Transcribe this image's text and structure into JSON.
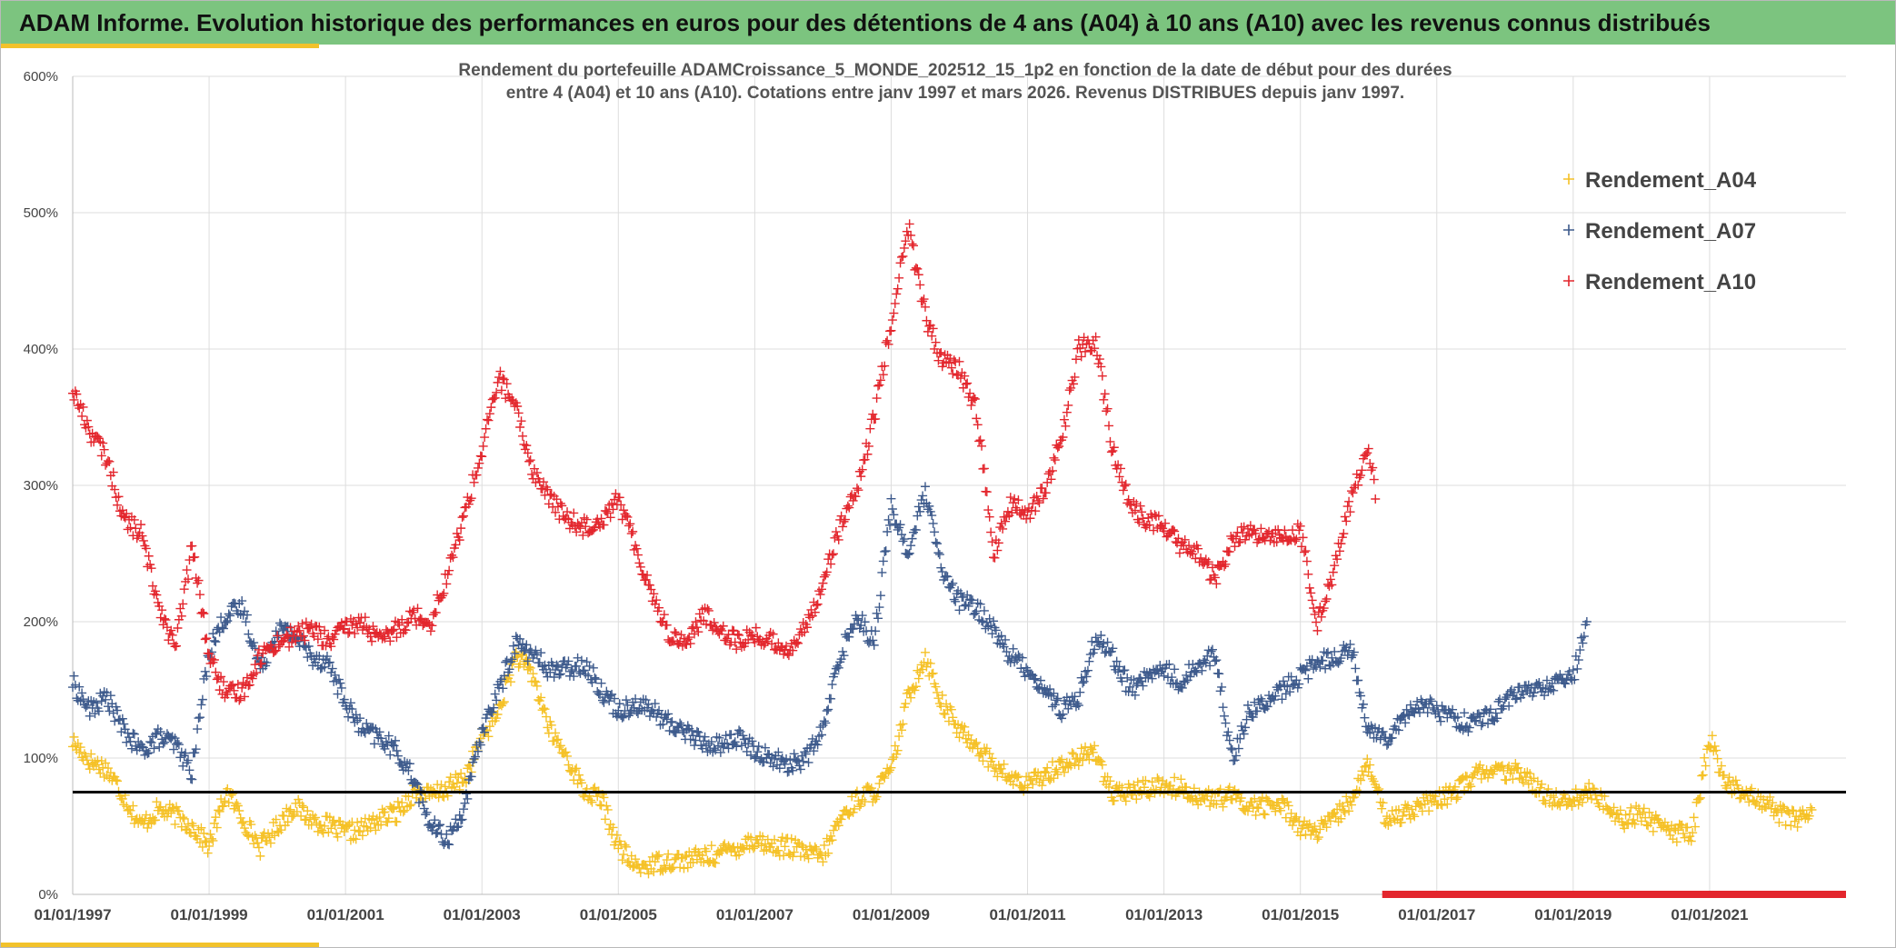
{
  "header": {
    "title": "ADAM Informe. Evolution historique des performances en euros pour des détentions de 4 ans (A04) à 10 ans (A10) avec les revenus connus distribués"
  },
  "colors": {
    "header_bg": "#7cc47f",
    "accent": "#f2c22b",
    "A04": "#f5c126",
    "A07": "#3d5a8c",
    "A10": "#e3262d",
    "threshold": "#000000"
  },
  "chart_data": {
    "type": "scatter",
    "title_lines": [
      "Rendement du portefeuille ADAMCroissance_5_MONDE_202512_15_1p2  en fonction de la date de début pour des durées",
      "entre 4 (A04) et 10 ans (A10). Cotations entre janv 1997 et mars 2026. Revenus DISTRIBUES depuis janv 1997."
    ],
    "x_range": [
      "01/01/1997",
      "01/01/2023"
    ],
    "x_ticks": [
      "01/01/1997",
      "01/01/1999",
      "01/01/2001",
      "01/01/2003",
      "01/01/2005",
      "01/01/2007",
      "01/01/2009",
      "01/01/2011",
      "01/01/2013",
      "01/01/2015",
      "01/01/2017",
      "01/01/2019",
      "01/01/2021"
    ],
    "ylim": [
      0,
      6
    ],
    "y_ticks": [
      0,
      1,
      2,
      3,
      4,
      5,
      6
    ],
    "y_tick_labels": [
      "0%",
      "100%",
      "200%",
      "300%",
      "400%",
      "500%",
      "600%"
    ],
    "reference_line": 0.75,
    "grid": true,
    "marker": "+",
    "legend_position": "top-right",
    "series": [
      {
        "name": "Rendement_A04",
        "color_key": "A04",
        "x": [
          1997.0,
          1997.25,
          1997.5,
          1997.75,
          1998.0,
          1998.25,
          1998.5,
          1998.75,
          1999.0,
          1999.25,
          1999.5,
          1999.75,
          2000.0,
          2000.25,
          2000.5,
          2000.75,
          2001.0,
          2001.25,
          2001.5,
          2001.75,
          2002.0,
          2002.25,
          2002.5,
          2002.75,
          2003.0,
          2003.25,
          2003.5,
          2003.75,
          2004.0,
          2004.25,
          2004.5,
          2004.75,
          2005.0,
          2005.25,
          2005.5,
          2005.75,
          2006.0,
          2006.25,
          2006.5,
          2006.75,
          2007.0,
          2007.25,
          2007.5,
          2007.75,
          2008.0,
          2008.25,
          2008.5,
          2008.75,
          2009.0,
          2009.25,
          2009.5,
          2009.75,
          2010.0,
          2010.25,
          2010.5,
          2010.75,
          2011.0,
          2011.25,
          2011.5,
          2011.75,
          2012.0,
          2012.25,
          2012.5,
          2012.75,
          2013.0,
          2013.25,
          2013.5,
          2013.75,
          2014.0,
          2014.25,
          2014.5,
          2014.75,
          2015.0,
          2015.25,
          2015.5,
          2015.75,
          2016.0,
          2016.25,
          2016.5,
          2016.75,
          2017.0,
          2017.25,
          2017.5,
          2017.75,
          2018.0,
          2018.25,
          2018.5,
          2018.75,
          2019.0,
          2019.25,
          2019.5,
          2019.75,
          2020.0,
          2020.25,
          2020.5,
          2020.75,
          2021.0,
          2021.25,
          2021.5,
          2021.75,
          2022.0,
          2022.25,
          2022.5
        ],
        "y": [
          1.12,
          0.98,
          0.92,
          0.72,
          0.5,
          0.62,
          0.58,
          0.5,
          0.35,
          0.76,
          0.55,
          0.35,
          0.5,
          0.65,
          0.55,
          0.5,
          0.45,
          0.48,
          0.55,
          0.6,
          0.75,
          0.72,
          0.78,
          0.85,
          1.15,
          1.35,
          1.75,
          1.6,
          1.2,
          1.0,
          0.75,
          0.7,
          0.35,
          0.2,
          0.22,
          0.25,
          0.25,
          0.28,
          0.3,
          0.35,
          0.4,
          0.35,
          0.35,
          0.3,
          0.28,
          0.55,
          0.7,
          0.75,
          0.9,
          1.45,
          1.75,
          1.4,
          1.2,
          1.1,
          0.95,
          0.85,
          0.8,
          0.88,
          0.95,
          1.0,
          1.05,
          0.72,
          0.75,
          0.78,
          0.8,
          0.78,
          0.72,
          0.7,
          0.72,
          0.65,
          0.65,
          0.65,
          0.5,
          0.45,
          0.55,
          0.7,
          0.95,
          0.55,
          0.6,
          0.65,
          0.68,
          0.75,
          0.85,
          0.92,
          0.88,
          0.9,
          0.75,
          0.7,
          0.7,
          0.75,
          0.65,
          0.55,
          0.6,
          0.5,
          0.45,
          0.45,
          1.15,
          0.8,
          0.75,
          0.7,
          0.6,
          0.55,
          0.62
        ]
      },
      {
        "name": "Rendement_A07",
        "color_key": "A07",
        "x": [
          1997.0,
          1997.25,
          1997.5,
          1997.75,
          1998.0,
          1998.25,
          1998.5,
          1998.75,
          1999.0,
          1999.25,
          1999.5,
          1999.75,
          2000.0,
          2000.25,
          2000.5,
          2000.75,
          2001.0,
          2001.25,
          2001.5,
          2001.75,
          2002.0,
          2002.25,
          2002.5,
          2002.75,
          2003.0,
          2003.25,
          2003.5,
          2003.75,
          2004.0,
          2004.25,
          2004.5,
          2004.75,
          2005.0,
          2005.25,
          2005.5,
          2005.75,
          2006.0,
          2006.25,
          2006.5,
          2006.75,
          2007.0,
          2007.25,
          2007.5,
          2007.75,
          2008.0,
          2008.25,
          2008.5,
          2008.75,
          2009.0,
          2009.25,
          2009.5,
          2009.75,
          2010.0,
          2010.25,
          2010.5,
          2010.75,
          2011.0,
          2011.25,
          2011.5,
          2011.75,
          2012.0,
          2012.25,
          2012.5,
          2012.75,
          2013.0,
          2013.25,
          2013.5,
          2013.75,
          2014.0,
          2014.25,
          2014.5,
          2014.75,
          2015.0,
          2015.25,
          2015.5,
          2015.75,
          2016.0,
          2016.25,
          2016.5,
          2016.75,
          2017.0,
          2017.25,
          2017.5,
          2017.75,
          2018.0,
          2018.25,
          2018.5,
          2018.75,
          2019.0,
          2019.2
        ],
        "y": [
          1.55,
          1.35,
          1.45,
          1.2,
          1.05,
          1.15,
          1.1,
          0.9,
          1.8,
          2.05,
          2.1,
          1.65,
          1.95,
          1.9,
          1.75,
          1.7,
          1.4,
          1.2,
          1.15,
          1.05,
          0.85,
          0.5,
          0.4,
          0.65,
          1.2,
          1.5,
          1.85,
          1.75,
          1.65,
          1.65,
          1.7,
          1.5,
          1.35,
          1.4,
          1.35,
          1.25,
          1.2,
          1.1,
          1.1,
          1.15,
          1.05,
          1.0,
          0.95,
          1.0,
          1.2,
          1.75,
          2.05,
          1.85,
          2.85,
          2.5,
          2.95,
          2.35,
          2.15,
          2.1,
          1.95,
          1.75,
          1.65,
          1.5,
          1.35,
          1.45,
          1.9,
          1.75,
          1.5,
          1.6,
          1.65,
          1.55,
          1.7,
          1.75,
          1.0,
          1.35,
          1.4,
          1.5,
          1.6,
          1.7,
          1.75,
          1.8,
          1.2,
          1.15,
          1.3,
          1.4,
          1.35,
          1.3,
          1.25,
          1.3,
          1.4,
          1.5,
          1.5,
          1.55,
          1.6,
          2.0
        ]
      },
      {
        "name": "Rendement_A10",
        "color_key": "A10",
        "x": [
          1997.0,
          1997.25,
          1997.5,
          1997.75,
          1998.0,
          1998.25,
          1998.5,
          1998.75,
          1999.0,
          1999.25,
          1999.5,
          1999.75,
          2000.0,
          2000.25,
          2000.5,
          2000.75,
          2001.0,
          2001.25,
          2001.5,
          2001.75,
          2002.0,
          2002.25,
          2002.5,
          2002.75,
          2003.0,
          2003.25,
          2003.5,
          2003.75,
          2004.0,
          2004.25,
          2004.5,
          2004.75,
          2005.0,
          2005.25,
          2005.5,
          2005.75,
          2006.0,
          2006.25,
          2006.5,
          2006.75,
          2007.0,
          2007.25,
          2007.5,
          2007.75,
          2008.0,
          2008.25,
          2008.5,
          2008.75,
          2009.0,
          2009.25,
          2009.5,
          2009.75,
          2010.0,
          2010.25,
          2010.5,
          2010.75,
          2011.0,
          2011.25,
          2011.5,
          2011.75,
          2012.0,
          2012.25,
          2012.5,
          2012.75,
          2013.0,
          2013.25,
          2013.5,
          2013.75,
          2014.0,
          2014.25,
          2014.5,
          2014.75,
          2015.0,
          2015.25,
          2015.5,
          2015.75,
          2016.0,
          2016.1
        ],
        "y": [
          3.7,
          3.4,
          3.2,
          2.75,
          2.65,
          2.15,
          1.8,
          2.55,
          1.75,
          1.45,
          1.5,
          1.75,
          1.85,
          1.9,
          1.95,
          1.85,
          1.95,
          2.0,
          1.85,
          1.95,
          2.05,
          2.0,
          2.35,
          2.8,
          3.25,
          3.8,
          3.55,
          3.1,
          2.9,
          2.75,
          2.7,
          2.75,
          2.9,
          2.55,
          2.2,
          1.9,
          1.85,
          2.05,
          1.95,
          1.85,
          1.9,
          1.85,
          1.8,
          1.95,
          2.3,
          2.7,
          2.95,
          3.5,
          4.2,
          4.9,
          4.25,
          3.9,
          3.85,
          3.55,
          2.5,
          2.85,
          2.8,
          2.95,
          3.35,
          4.0,
          4.05,
          3.25,
          2.85,
          2.75,
          2.7,
          2.55,
          2.5,
          2.3,
          2.6,
          2.65,
          2.6,
          2.65,
          2.65,
          2.0,
          2.4,
          2.9,
          3.3,
          2.9
        ]
      }
    ],
    "bottom_band": {
      "color_key": "A10",
      "x_from": 2016.2,
      "x_to": 2023.0,
      "y": 0.0
    }
  }
}
